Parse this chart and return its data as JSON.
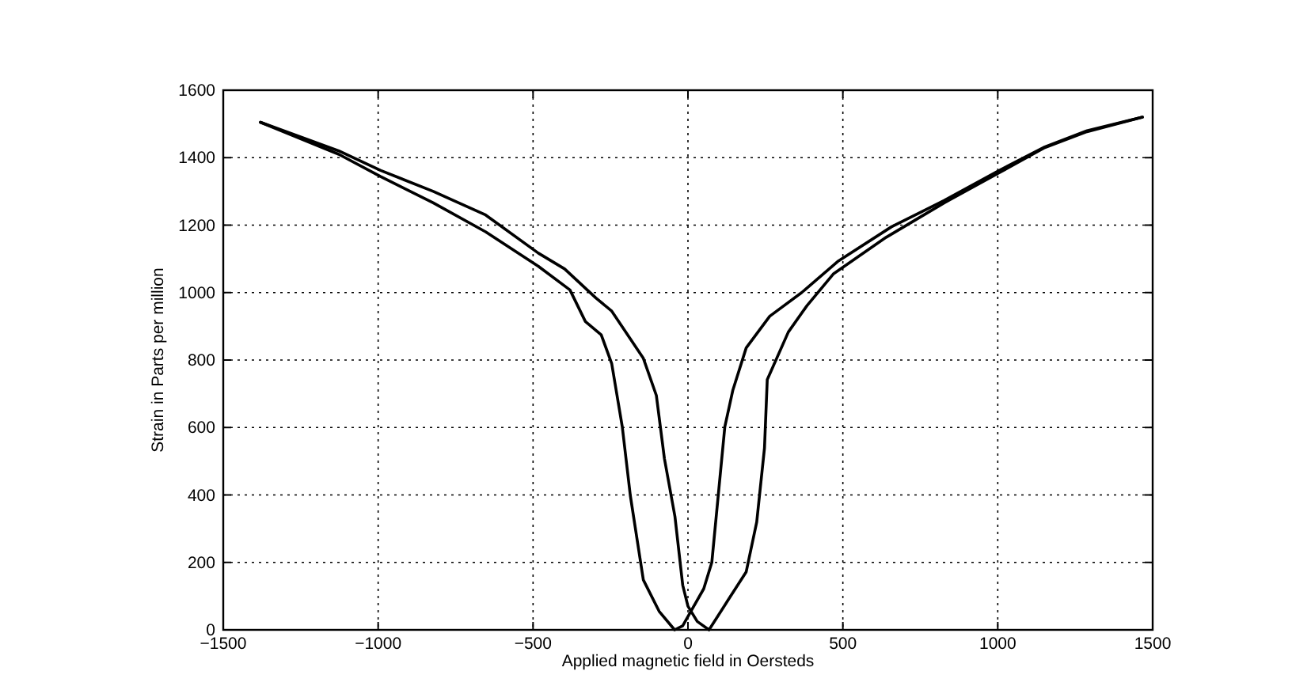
{
  "chart_data": {
    "type": "line",
    "xlabel": "Applied magnetic field in Oersteds",
    "ylabel": "Strain in Parts per million",
    "xlim": [
      -1500,
      1500
    ],
    "xticks": [
      -1500,
      -1000,
      -500,
      0,
      500,
      1000,
      1500
    ],
    "ylim": [
      0,
      1600
    ],
    "yticks": [
      0,
      200,
      400,
      600,
      800,
      1000,
      1200,
      1400,
      1600
    ],
    "grid": true,
    "line_style": "solid",
    "series": [
      {
        "color": "#000000",
        "x": [
          -1380,
          -1127,
          -992,
          -822,
          -653,
          -483,
          -398,
          -297,
          -246,
          -144,
          -102,
          -76,
          -42,
          -17,
          0,
          30,
          68,
          128,
          188,
          222,
          247,
          256,
          324,
          384,
          469,
          640,
          827,
          998,
          1152,
          1288,
          1467
        ],
        "values": [
          1505,
          1420,
          1362,
          1300,
          1230,
          1117,
          1070,
          984,
          945,
          805,
          695,
          508,
          336,
          133,
          70,
          25,
          0,
          86,
          172,
          320,
          539,
          742,
          883,
          961,
          1055,
          1164,
          1266,
          1352,
          1430,
          1477,
          1520
        ]
      },
      {
        "color": "#000000",
        "x": [
          1467,
          1288,
          1152,
          998,
          827,
          657,
          486,
          367,
          264,
          188,
          145,
          119,
          77,
          51,
          17,
          -17,
          -43,
          -93,
          -144,
          -186,
          -212,
          -246,
          -280,
          -331,
          -381,
          -483,
          -653,
          -822,
          -992,
          -1127,
          -1380
        ],
        "values": [
          1520,
          1480,
          1432,
          1359,
          1273,
          1195,
          1094,
          1000,
          930,
          836,
          711,
          602,
          200,
          122,
          67,
          12,
          0,
          55,
          148,
          398,
          602,
          789,
          875,
          914,
          1008,
          1078,
          1180,
          1266,
          1344,
          1410,
          1505
        ]
      }
    ]
  }
}
